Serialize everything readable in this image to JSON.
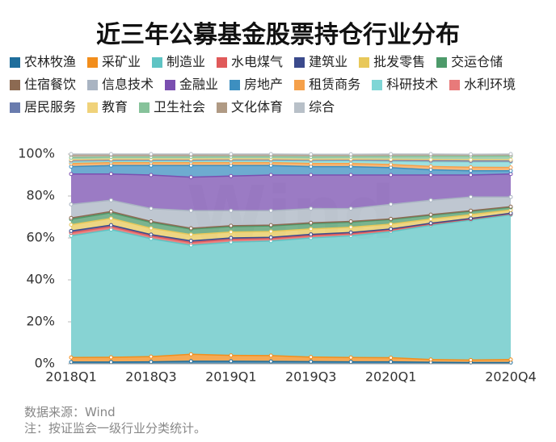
{
  "chart_data": {
    "type": "stacked_area",
    "title": "近三年公募基金股票持仓行业分布",
    "watermark": "Wind",
    "source": "数据来源：Wind",
    "note": "注：按证监会一级行业分类统计。",
    "categories": [
      "2018Q1",
      null,
      "2018Q3",
      null,
      "2019Q1",
      null,
      "2019Q3",
      null,
      "2020Q1",
      null,
      null,
      "2020Q4"
    ],
    "ylim": [
      0,
      100
    ],
    "yticks": [
      {
        "value": 0,
        "label": "0%"
      },
      {
        "value": 20,
        "label": "20%"
      },
      {
        "value": 40,
        "label": "40%"
      },
      {
        "value": 60,
        "label": "60%"
      },
      {
        "value": 80,
        "label": "80%"
      },
      {
        "value": 100,
        "label": "100%"
      }
    ],
    "grid": false,
    "series": [
      {
        "name": "农林牧渔",
        "color": "#1f6e9c",
        "values": [
          0.8,
          0.8,
          0.9,
          1.2,
          1.2,
          1.1,
          1.0,
          0.9,
          0.9,
          0.7,
          0.6,
          0.6
        ]
      },
      {
        "name": "采矿业",
        "color": "#f28e1c",
        "values": [
          2.2,
          2.3,
          2.5,
          3.3,
          2.8,
          2.8,
          2.2,
          2.1,
          2.0,
          1.3,
          1.2,
          1.4
        ]
      },
      {
        "name": "制造业",
        "color": "#5fc4c4",
        "values": [
          58,
          60.9,
          56.2,
          52,
          54,
          54.6,
          56.8,
          58,
          60.1,
          64,
          66.7,
          69
        ]
      },
      {
        "name": "水电煤气",
        "color": "#e05a5a",
        "values": [
          1.5,
          1.4,
          1.3,
          1.4,
          1.3,
          1.2,
          1.1,
          1.0,
          0.8,
          0.6,
          0.5,
          0.5
        ]
      },
      {
        "name": "建筑业",
        "color": "#3b4a8c",
        "values": [
          0.8,
          0.7,
          0.7,
          0.7,
          0.7,
          0.6,
          0.6,
          0.6,
          0.5,
          0.4,
          0.3,
          0.3
        ]
      },
      {
        "name": "批发零售",
        "color": "#e8c85a",
        "values": [
          3.0,
          3.2,
          3.0,
          3.0,
          2.8,
          2.8,
          2.6,
          2.5,
          2.3,
          2.0,
          1.8,
          1.5
        ]
      },
      {
        "name": "交运仓储",
        "color": "#4d9a6a",
        "values": [
          2.6,
          2.7,
          2.8,
          2.6,
          2.6,
          2.6,
          2.5,
          2.4,
          2.2,
          1.8,
          1.6,
          1.3
        ]
      },
      {
        "name": "住宿餐饮",
        "color": "#8c6a52",
        "values": [
          0.6,
          0.6,
          0.5,
          0.4,
          0.4,
          0.4,
          0.4,
          0.4,
          0.3,
          0.3,
          0.3,
          0.3
        ]
      },
      {
        "name": "信息技术",
        "color": "#a9b4c2",
        "values": [
          6.5,
          5.4,
          6.1,
          8.4,
          7.2,
          6.9,
          6.8,
          6.1,
          6.9,
          6.9,
          6.5,
          4.6
        ]
      },
      {
        "name": "金融业",
        "color": "#7a4fb0",
        "values": [
          14.5,
          12.5,
          16,
          16,
          16.5,
          17,
          16,
          16,
          14,
          12,
          10.5,
          11
        ]
      },
      {
        "name": "房地产",
        "color": "#3d8fc0",
        "values": [
          3.5,
          4,
          4.5,
          5.5,
          5,
          4.5,
          4,
          4,
          3.5,
          2.5,
          2,
          1.5
        ]
      },
      {
        "name": "租赁商务",
        "color": "#f5a04a",
        "values": [
          1.5,
          1.4,
          1.4,
          1.4,
          1.4,
          1.4,
          1.5,
          1.5,
          1.5,
          1.6,
          1.7,
          1.6
        ]
      },
      {
        "name": "科研技术",
        "color": "#7fd6d6",
        "values": [
          0.8,
          0.7,
          0.8,
          0.8,
          0.9,
          0.9,
          1.1,
          1.2,
          1.5,
          2.2,
          2.5,
          2.6
        ]
      },
      {
        "name": "水利环境",
        "color": "#e87a7a",
        "values": [
          0.6,
          0.6,
          0.5,
          0.5,
          0.5,
          0.5,
          0.5,
          0.5,
          0.5,
          0.5,
          0.5,
          0.5
        ]
      },
      {
        "name": "居民服务",
        "color": "#6a7cae",
        "values": [
          0.1,
          0.1,
          0.1,
          0.1,
          0.1,
          0.1,
          0.1,
          0.1,
          0.1,
          0.1,
          0.1,
          0.1
        ]
      },
      {
        "name": "教育",
        "color": "#f0d27a",
        "values": [
          0.3,
          0.3,
          0.3,
          0.3,
          0.3,
          0.3,
          0.3,
          0.3,
          0.4,
          0.5,
          0.5,
          0.5
        ]
      },
      {
        "name": "卫生社会",
        "color": "#86c29a",
        "values": [
          1.0,
          1.0,
          1.0,
          1.0,
          1.0,
          1.0,
          1.1,
          1.1,
          1.3,
          1.5,
          1.6,
          1.7
        ]
      },
      {
        "name": "文化体育",
        "color": "#b09a84",
        "values": [
          1.3,
          1.0,
          1.0,
          1.0,
          1.0,
          1.0,
          1.0,
          1.0,
          0.9,
          0.8,
          0.8,
          0.7
        ]
      },
      {
        "name": "综合",
        "color": "#b8c0c8",
        "values": [
          0.4,
          0.4,
          0.4,
          0.4,
          0.3,
          0.3,
          0.3,
          0.2,
          0.3,
          0.3,
          0.2,
          0.3
        ]
      }
    ]
  }
}
